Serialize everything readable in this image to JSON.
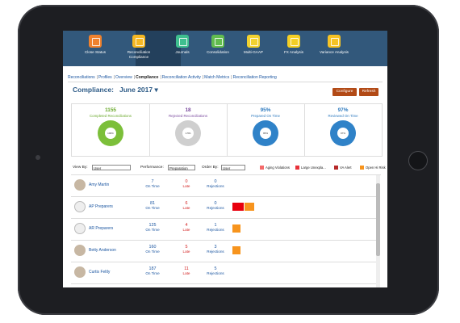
{
  "nav": [
    {
      "label": "Close Status",
      "color": "#f0822e"
    },
    {
      "label": "Reconciliation Compliance",
      "color": "#f5b824",
      "active": true
    },
    {
      "label": "Journals",
      "color": "#3fbf8f"
    },
    {
      "label": "Consolidation",
      "color": "#62bd4f"
    },
    {
      "label": "Multi-GAAP",
      "color": "#f2d230"
    },
    {
      "label": "FX Analysis",
      "color": "#f4cf25"
    },
    {
      "label": "Variance Analysis",
      "color": "#f6c325"
    }
  ],
  "subnav": {
    "items": [
      "Reconciliations",
      "Profiles",
      "Overview",
      "Compliance",
      "Reconciliation Activity",
      "Match Metrics",
      "Reconciliation Reporting"
    ],
    "current": "Compliance"
  },
  "header": {
    "title": "Compliance:",
    "month": "June 2017 ▾",
    "configure": "Configure",
    "refresh": "Refresh"
  },
  "cards": [
    {
      "value": "1155",
      "label": "Completed Reconciliations",
      "color": "#6aa92c",
      "ring": "#7cbf3a",
      "pct": "100%"
    },
    {
      "value": "18",
      "label": "Rejected Reconciliations",
      "color": "#7a4a9e",
      "ring": "#cfcfcf",
      "pct": "1.5%"
    },
    {
      "value": "95%",
      "label": "Prepared On Time",
      "color": "#2f7bbf",
      "ring": "#2f82c8",
      "pct": "95%"
    },
    {
      "value": "97%",
      "label": "Reviewed On Time",
      "color": "#2f7bbf",
      "ring": "#2f82c8",
      "pct": "97%"
    }
  ],
  "filters": {
    "view_by_label": "View By:",
    "view_by": "User",
    "performance_label": "Performance:",
    "performance": "Preparation",
    "order_by_label": "Order By:",
    "order_by": "User"
  },
  "legend": [
    {
      "label": "Aging Violations",
      "color": "#f46a6a"
    },
    {
      "label": "Large Unexpla...",
      "color": "#e8313a"
    },
    {
      "label": "VA Alert",
      "color": "#b62a2a"
    },
    {
      "label": "Open Hi Risk",
      "color": "#f7941d"
    }
  ],
  "rows": [
    {
      "name": "Amy Martin",
      "type": "person",
      "on_time": "7",
      "late": "0",
      "rejections": "0",
      "bars": []
    },
    {
      "name": "AP Preparers",
      "type": "group",
      "on_time": "81",
      "late": "6",
      "rejections": "0",
      "bars": [
        {
          "color": "#e8000d",
          "w": 14
        },
        {
          "color": "#f7941d",
          "w": 12
        }
      ]
    },
    {
      "name": "AR Preparers",
      "type": "group",
      "on_time": "125",
      "late": "4",
      "rejections": "1",
      "bars": [
        {
          "color": "#f7941d",
          "w": 10
        }
      ]
    },
    {
      "name": "Betty Anderson",
      "type": "person",
      "on_time": "160",
      "late": "5",
      "rejections": "3",
      "bars": [
        {
          "color": "#f7941d",
          "w": 10
        }
      ]
    },
    {
      "name": "Curtis Feltly",
      "type": "person",
      "on_time": "187",
      "late": "11",
      "rejections": "5",
      "bars": []
    }
  ],
  "col_labels": {
    "on_time": "On Time",
    "late": "Late",
    "rejections": "Rejections"
  }
}
